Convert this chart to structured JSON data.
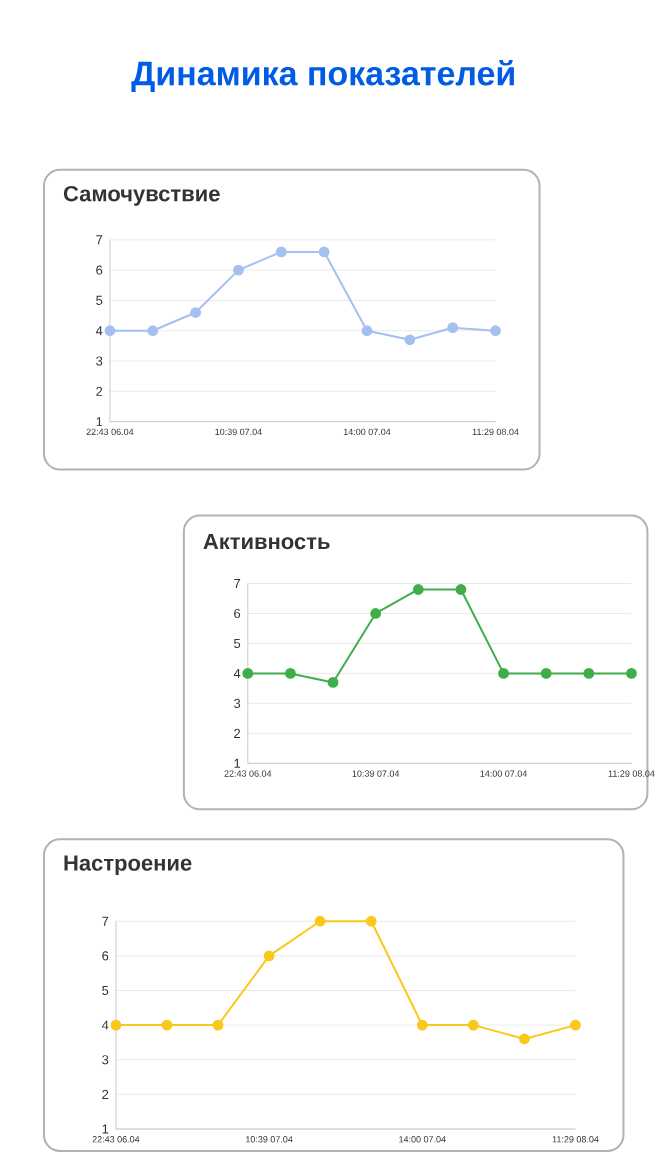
{
  "chart_data": [
    {
      "type": "line",
      "title": "Самочувствие",
      "annotations": [
        "Динамика показателей"
      ],
      "categories": [
        "22:43 06.04",
        null,
        null,
        "10:39 07.04",
        null,
        null,
        "14:00 07.04",
        null,
        null,
        "11:29 08.04"
      ],
      "series": [
        {
          "color": "#a4c0f0",
          "values": [
            4,
            4,
            4.6,
            6,
            6.6,
            6.6,
            4,
            3.7,
            4.1,
            4
          ]
        }
      ],
      "ylim": [
        1,
        7
      ],
      "yticks": [
        1,
        2,
        3,
        4,
        5,
        6,
        7
      ],
      "grid": "y",
      "marker": "circle"
    },
    {
      "type": "line",
      "title": "Активность",
      "categories": [
        "22:43 06.04",
        null,
        null,
        "10:39 07.04",
        null,
        null,
        "14:00 07.04",
        null,
        null,
        "11:29 08.04"
      ],
      "series": [
        {
          "color": "#3fae49",
          "values": [
            4,
            4,
            3.7,
            6,
            6.8,
            6.8,
            4,
            4,
            4,
            4
          ]
        }
      ],
      "ylim": [
        1,
        7
      ],
      "yticks": [
        1,
        2,
        3,
        4,
        5,
        6,
        7
      ],
      "grid": "y",
      "marker": "circle"
    },
    {
      "type": "line",
      "title": "Настроение",
      "categories": [
        "22:43 06.04",
        null,
        null,
        "10:39 07.04",
        null,
        null,
        "14:00 07.04",
        null,
        null,
        "11:29 08.04"
      ],
      "series": [
        {
          "color": "#f8c81c",
          "values": [
            4,
            4,
            4,
            6,
            7,
            7,
            4,
            4,
            3.6,
            4
          ]
        }
      ],
      "ylim": [
        1,
        7
      ],
      "yticks": [
        1,
        2,
        3,
        4,
        5,
        6,
        7
      ],
      "grid": "y",
      "marker": "circle"
    }
  ]
}
